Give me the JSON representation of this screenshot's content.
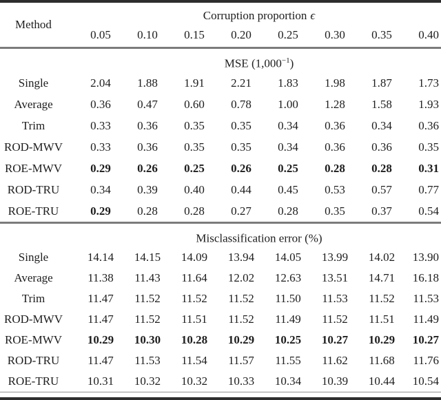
{
  "table": {
    "header": {
      "method_label": "Method",
      "corruption_label": "Corruption proportion",
      "epsilon_symbol": "ϵ",
      "columns": [
        "0.05",
        "0.10",
        "0.15",
        "0.20",
        "0.25",
        "0.30",
        "0.35",
        "0.40"
      ]
    },
    "sections": [
      {
        "title": {
          "prefix": "MSE (1,000",
          "sup": "−1",
          "suffix": ")"
        },
        "rows": [
          {
            "label": "Single",
            "values": [
              "2.04",
              "1.88",
              "1.91",
              "2.21",
              "1.83",
              "1.98",
              "1.87",
              "1.73"
            ],
            "bold": [
              0,
              0,
              0,
              0,
              0,
              0,
              0,
              0
            ]
          },
          {
            "label": "Average",
            "values": [
              "0.36",
              "0.47",
              "0.60",
              "0.78",
              "1.00",
              "1.28",
              "1.58",
              "1.93"
            ],
            "bold": [
              0,
              0,
              0,
              0,
              0,
              0,
              0,
              0
            ]
          },
          {
            "label": "Trim",
            "values": [
              "0.33",
              "0.36",
              "0.35",
              "0.35",
              "0.34",
              "0.36",
              "0.34",
              "0.36"
            ],
            "bold": [
              0,
              0,
              0,
              0,
              0,
              0,
              0,
              0
            ]
          },
          {
            "label": "ROD-MWV",
            "values": [
              "0.33",
              "0.36",
              "0.35",
              "0.35",
              "0.34",
              "0.36",
              "0.36",
              "0.35"
            ],
            "bold": [
              0,
              0,
              0,
              0,
              0,
              0,
              0,
              0
            ]
          },
          {
            "label": "ROE-MWV",
            "values": [
              "0.29",
              "0.26",
              "0.25",
              "0.26",
              "0.25",
              "0.28",
              "0.28",
              "0.31"
            ],
            "bold": [
              1,
              1,
              1,
              1,
              1,
              1,
              1,
              1
            ]
          },
          {
            "label": "ROD-TRU",
            "values": [
              "0.34",
              "0.39",
              "0.40",
              "0.44",
              "0.45",
              "0.53",
              "0.57",
              "0.77"
            ],
            "bold": [
              0,
              0,
              0,
              0,
              0,
              0,
              0,
              0
            ]
          },
          {
            "label": "ROE-TRU",
            "values": [
              "0.29",
              "0.28",
              "0.28",
              "0.27",
              "0.28",
              "0.35",
              "0.37",
              "0.54"
            ],
            "bold": [
              1,
              0,
              0,
              0,
              0,
              0,
              0,
              0
            ]
          }
        ]
      },
      {
        "title": {
          "prefix": "Misclassification error (%)",
          "sup": "",
          "suffix": ""
        },
        "rows": [
          {
            "label": "Single",
            "values": [
              "14.14",
              "14.15",
              "14.09",
              "13.94",
              "14.05",
              "13.99",
              "14.02",
              "13.90"
            ],
            "bold": [
              0,
              0,
              0,
              0,
              0,
              0,
              0,
              0
            ]
          },
          {
            "label": "Average",
            "values": [
              "11.38",
              "11.43",
              "11.64",
              "12.02",
              "12.63",
              "13.51",
              "14.71",
              "16.18"
            ],
            "bold": [
              0,
              0,
              0,
              0,
              0,
              0,
              0,
              0
            ]
          },
          {
            "label": "Trim",
            "values": [
              "11.47",
              "11.52",
              "11.52",
              "11.52",
              "11.50",
              "11.53",
              "11.52",
              "11.53"
            ],
            "bold": [
              0,
              0,
              0,
              0,
              0,
              0,
              0,
              0
            ]
          },
          {
            "label": "ROD-MWV",
            "values": [
              "11.47",
              "11.52",
              "11.51",
              "11.52",
              "11.49",
              "11.52",
              "11.51",
              "11.49"
            ],
            "bold": [
              0,
              0,
              0,
              0,
              0,
              0,
              0,
              0
            ]
          },
          {
            "label": "ROE-MWV",
            "values": [
              "10.29",
              "10.30",
              "10.28",
              "10.29",
              "10.25",
              "10.27",
              "10.29",
              "10.27"
            ],
            "bold": [
              1,
              1,
              1,
              1,
              1,
              1,
              1,
              1
            ]
          },
          {
            "label": "ROD-TRU",
            "values": [
              "11.47",
              "11.53",
              "11.54",
              "11.57",
              "11.55",
              "11.62",
              "11.68",
              "11.76"
            ],
            "bold": [
              0,
              0,
              0,
              0,
              0,
              0,
              0,
              0
            ]
          },
          {
            "label": "ROE-TRU",
            "values": [
              "10.31",
              "10.32",
              "10.32",
              "10.33",
              "10.34",
              "10.39",
              "10.44",
              "10.54"
            ],
            "bold": [
              0,
              0,
              0,
              0,
              0,
              0,
              0,
              0
            ]
          }
        ]
      }
    ]
  },
  "colors": {
    "rule_heavy": "#2d2d2d",
    "rule_medium": "#7b7b7b",
    "rule_thin": "#8f8f8f",
    "text": "#1d1d1d",
    "background": "#ffffff"
  }
}
